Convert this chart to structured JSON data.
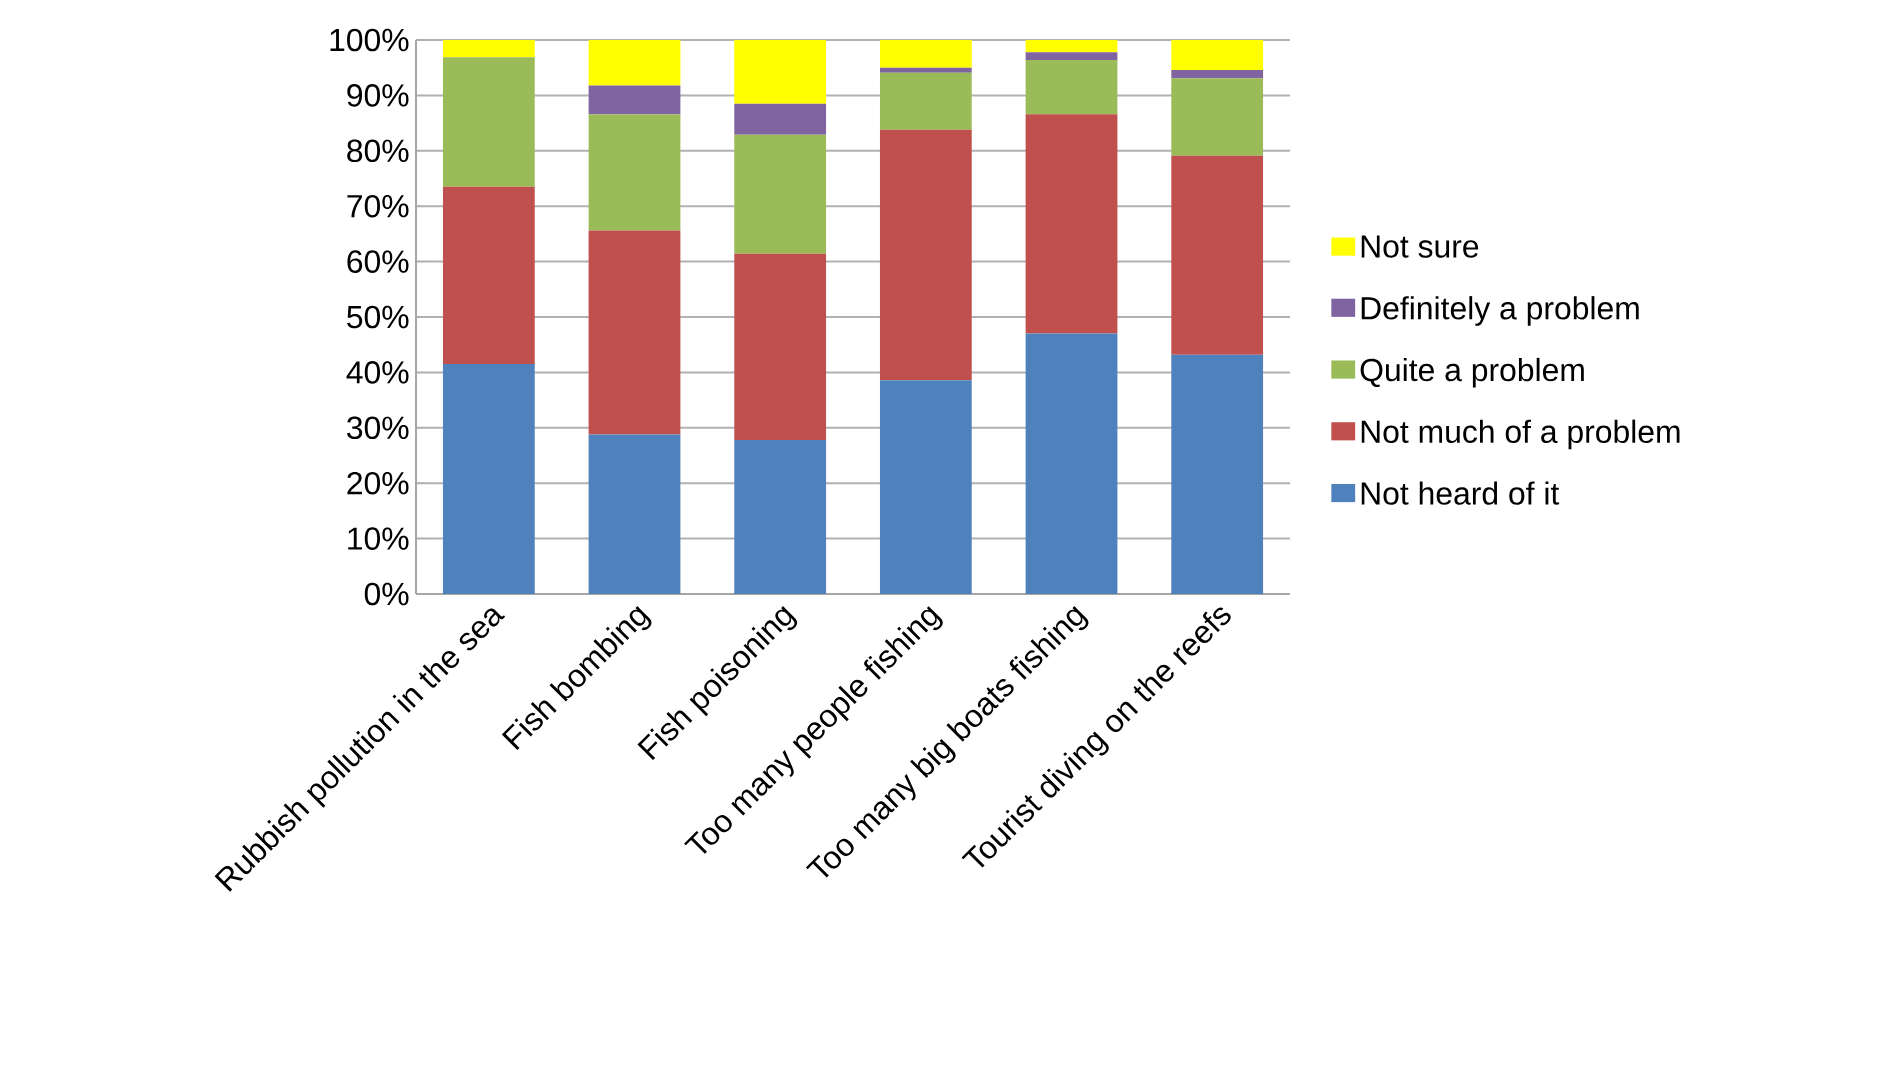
{
  "chart_data": {
    "type": "bar",
    "stacked": true,
    "categories": [
      "Rubbish pollution in the sea",
      "Fish bombing",
      "Fish poisoning",
      "Too many people fishing",
      "Too many big boats fishing",
      "Tourist diving on the reefs"
    ],
    "series": [
      {
        "name": "Not heard of it",
        "color": "#4f81bd",
        "values": [
          41.5,
          28.8,
          27.8,
          38.6,
          47.0,
          43.2
        ]
      },
      {
        "name": "Not much of a problem",
        "color": "#c0504d",
        "values": [
          32.0,
          36.8,
          33.6,
          45.2,
          39.6,
          35.9
        ]
      },
      {
        "name": "Quite a problem",
        "color": "#9bbb59",
        "values": [
          23.4,
          21.0,
          21.5,
          10.3,
          9.8,
          14.0
        ]
      },
      {
        "name": "Definitely a problem",
        "color": "#8064a2",
        "values": [
          0,
          5.2,
          5.6,
          0.9,
          1.4,
          1.5
        ]
      },
      {
        "name": "Not sure",
        "color": "#ffff00",
        "values": [
          3.1,
          8.2,
          11.5,
          5.0,
          2.2,
          5.4
        ]
      }
    ],
    "ylim": [
      0,
      100
    ],
    "yticks": [
      {
        "value": 0,
        "label": "0%"
      },
      {
        "value": 10,
        "label": "10%"
      },
      {
        "value": 20,
        "label": "20%"
      },
      {
        "value": 30,
        "label": "30%"
      },
      {
        "value": 40,
        "label": "40%"
      },
      {
        "value": 50,
        "label": "50%"
      },
      {
        "value": 60,
        "label": "60%"
      },
      {
        "value": 70,
        "label": "70%"
      },
      {
        "value": 80,
        "label": "80%"
      },
      {
        "value": 90,
        "label": "90%"
      },
      {
        "value": 100,
        "label": "100%"
      }
    ],
    "grid": "y",
    "legend": "right"
  }
}
